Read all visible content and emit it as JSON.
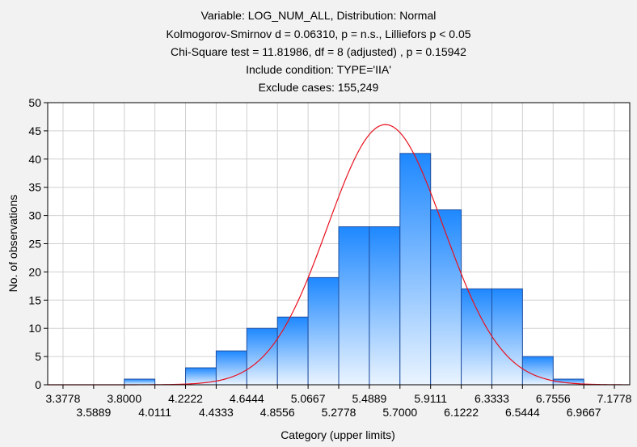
{
  "chart_data": {
    "type": "bar",
    "title_lines": [
      "Variable: LOG_NUM_ALL, Distribution: Normal",
      "Kolmogorov-Smirnov d = 0.06310, p = n.s., Lilliefors p < 0.05",
      "Chi-Square test = 11.81986, df = 8 (adjusted) , p = 0.15942",
      "Include condition: TYPE='IIA'",
      "Exclude cases: 155,249"
    ],
    "xlabel": "Category (upper limits)",
    "ylabel": "No. of observations",
    "xlim": [
      3.2722,
      7.2833
    ],
    "ylim": [
      0,
      50
    ],
    "yticks": [
      0,
      5,
      10,
      15,
      20,
      25,
      30,
      35,
      40,
      45,
      50
    ],
    "xticks_row1": [
      "3.3778",
      "3.8000",
      "4.2222",
      "4.6444",
      "5.0667",
      "5.4889",
      "5.9111",
      "6.3333",
      "6.7556",
      "7.1778"
    ],
    "xticks_row2": [
      "3.5889",
      "4.0111",
      "4.4333",
      "4.8556",
      "5.2778",
      "5.7000",
      "6.1222",
      "6.5444",
      "6.9667"
    ],
    "bin_width": 0.21111,
    "bin_upper_limits": [
      3.3778,
      3.5889,
      3.8,
      4.0111,
      4.2222,
      4.4333,
      4.6444,
      4.8556,
      5.0667,
      5.2778,
      5.4889,
      5.7,
      5.9111,
      6.1222,
      6.3333,
      6.5444,
      6.7556,
      6.9667,
      7.1778
    ],
    "values": [
      0,
      0,
      0,
      1,
      0,
      3,
      6,
      10,
      12,
      19,
      28,
      28,
      41,
      31,
      17,
      17,
      5,
      1,
      0
    ],
    "fit": {
      "distribution": "Normal",
      "mean": 5.6,
      "sd": 0.4
    },
    "grid": true,
    "colors": {
      "bar_top": "#1e88ff",
      "bar_bottom": "#eaf4ff",
      "bar_stroke": "#1f4fa0",
      "curve": "#e8111e",
      "grid": "#d0d0d0",
      "plot_bg": "#ffffff"
    }
  }
}
